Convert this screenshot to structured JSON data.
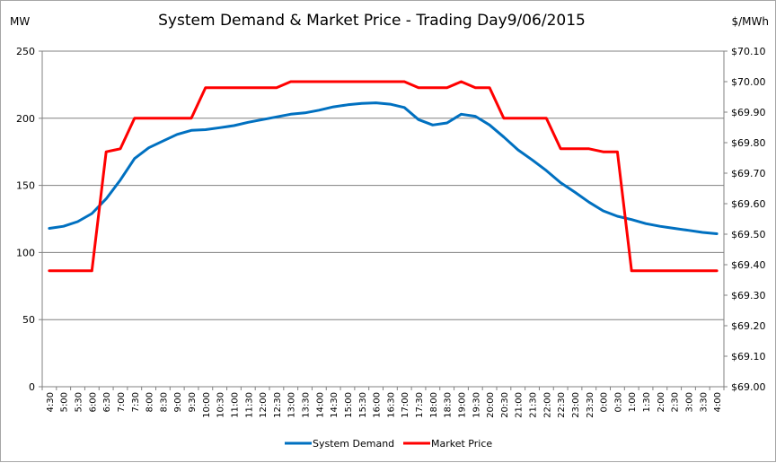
{
  "chart_data": {
    "type": "line",
    "title": "System Demand & Market Price - Trading Day9/06/2015",
    "ylabel_left": "MW",
    "ylabel_right": "$/MWh",
    "ylim_left": [
      0,
      250
    ],
    "yticks_left": [
      "0",
      "50",
      "100",
      "150",
      "200",
      "250"
    ],
    "ylim_right": [
      69.0,
      70.1
    ],
    "yticks_right": [
      "$69.00",
      "$69.10",
      "$69.20",
      "$69.30",
      "$69.40",
      "$69.50",
      "$69.60",
      "$69.70",
      "$69.80",
      "$69.90",
      "$70.00",
      "$70.10"
    ],
    "grid": true,
    "legend_position": "bottom",
    "categories": [
      "4:30",
      "5:00",
      "5:30",
      "6:00",
      "6:30",
      "7:00",
      "7:30",
      "8:00",
      "8:30",
      "9:00",
      "9:30",
      "10:00",
      "10:30",
      "11:00",
      "11:30",
      "12:00",
      "12:30",
      "13:00",
      "13:30",
      "14:00",
      "14:30",
      "15:00",
      "15:30",
      "16:00",
      "16:30",
      "17:00",
      "17:30",
      "18:00",
      "18:30",
      "19:00",
      "19:30",
      "20:00",
      "20:30",
      "21:00",
      "21:30",
      "22:00",
      "22:30",
      "23:00",
      "23:30",
      "0:00",
      "0:30",
      "1:00",
      "1:30",
      "2:00",
      "2:30",
      "3:00",
      "3:30",
      "4:00"
    ],
    "series": [
      {
        "name": "System Demand",
        "axis": "left",
        "color": "#0070c0",
        "values": [
          118,
          119.5,
          123,
          129,
          140,
          154,
          170,
          178,
          183,
          188,
          191,
          191.5,
          193,
          194.5,
          197,
          199,
          201,
          203,
          204,
          206,
          208.5,
          210,
          211,
          211.5,
          210.5,
          208,
          199,
          195,
          196.5,
          203,
          201.5,
          195,
          186,
          176.5,
          169,
          161,
          152,
          145,
          137.5,
          131,
          127,
          124.5,
          121.5,
          119.5,
          118,
          116.5,
          115,
          114
        ]
      },
      {
        "name": "Market Price",
        "axis": "right",
        "color": "#ff0000",
        "values": [
          69.38,
          69.38,
          69.38,
          69.38,
          69.77,
          69.78,
          69.88,
          69.88,
          69.88,
          69.88,
          69.88,
          69.98,
          69.98,
          69.98,
          69.98,
          69.98,
          69.98,
          70.0,
          70.0,
          70.0,
          70.0,
          70.0,
          70.0,
          70.0,
          70.0,
          70.0,
          69.98,
          69.98,
          69.98,
          70.0,
          69.98,
          69.98,
          69.88,
          69.88,
          69.88,
          69.88,
          69.78,
          69.78,
          69.78,
          69.77,
          69.77,
          69.38,
          69.38,
          69.38,
          69.38,
          69.38,
          69.38,
          69.38
        ]
      }
    ]
  }
}
